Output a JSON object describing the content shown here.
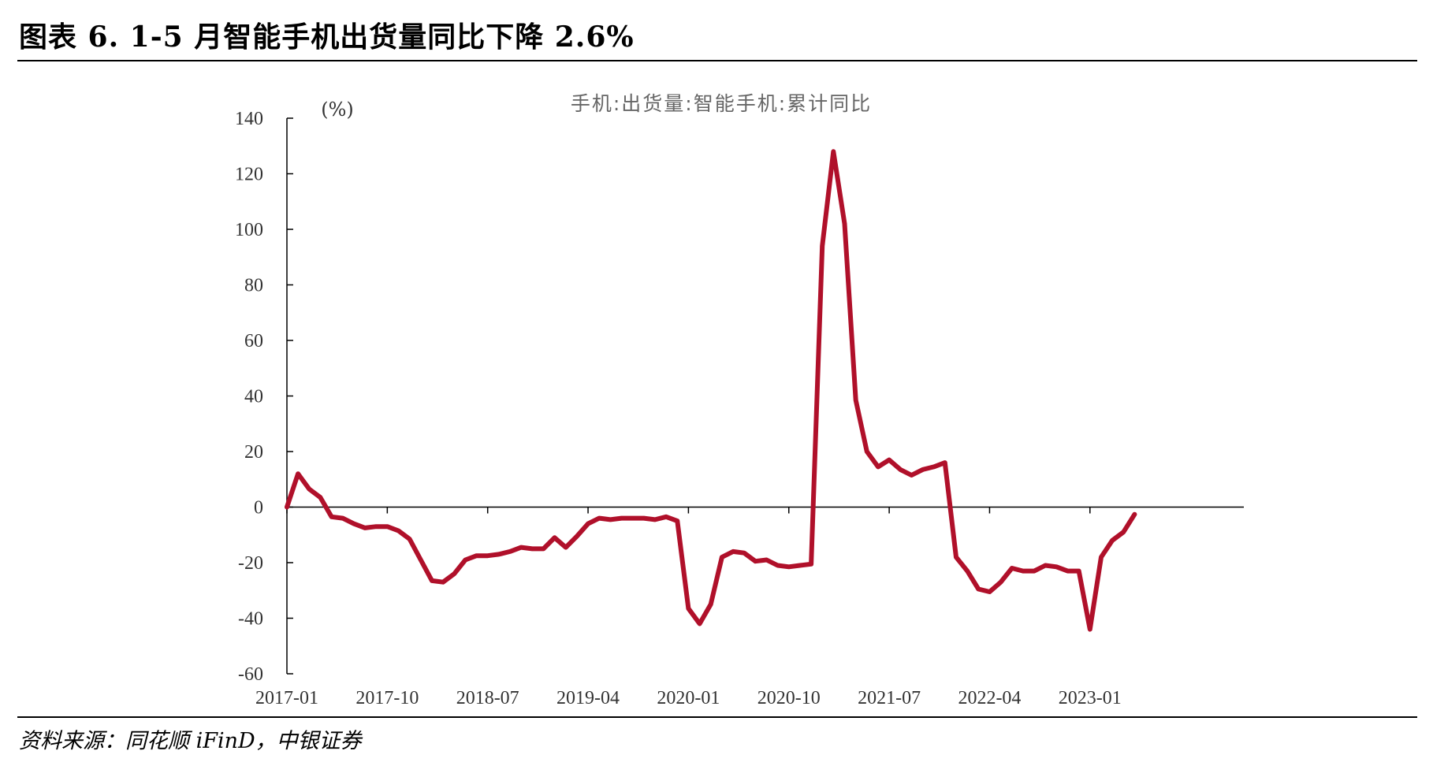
{
  "figure": {
    "title": "图表 6. 1-5 月智能手机出货量同比下降 2.6%",
    "source": "资料来源：同花顺 iFinD，中银证券"
  },
  "chart_data": {
    "type": "line",
    "title": "手机:出货量:智能手机:累计同比",
    "ylabel": "(%)",
    "xlabel": "",
    "ylim": [
      -60,
      140
    ],
    "yticks": [
      -60,
      -40,
      -20,
      0,
      20,
      40,
      60,
      80,
      100,
      120,
      140
    ],
    "xticks": [
      "2017-01",
      "2017-10",
      "2018-07",
      "2019-04",
      "2020-01",
      "2020-10",
      "2021-07",
      "2022-04",
      "2023-01"
    ],
    "grid": false,
    "legend": "none",
    "series": [
      {
        "name": "",
        "color": "#B0102A",
        "x": [
          "2017-01",
          "2017-02",
          "2017-03",
          "2017-04",
          "2017-05",
          "2017-06",
          "2017-07",
          "2017-08",
          "2017-09",
          "2017-10",
          "2017-11",
          "2017-12",
          "2018-01",
          "2018-02",
          "2018-03",
          "2018-04",
          "2018-05",
          "2018-06",
          "2018-07",
          "2018-08",
          "2018-09",
          "2018-10",
          "2018-11",
          "2018-12",
          "2019-01",
          "2019-02",
          "2019-03",
          "2019-04",
          "2019-05",
          "2019-06",
          "2019-07",
          "2019-08",
          "2019-09",
          "2019-10",
          "2019-11",
          "2019-12",
          "2020-01",
          "2020-02",
          "2020-03",
          "2020-04",
          "2020-05",
          "2020-06",
          "2020-07",
          "2020-08",
          "2020-09",
          "2020-10",
          "2020-11",
          "2020-12",
          "2021-01",
          "2021-02",
          "2021-03",
          "2021-04",
          "2021-05",
          "2021-06",
          "2021-07",
          "2021-08",
          "2021-09",
          "2021-10",
          "2021-11",
          "2021-12",
          "2022-01",
          "2022-02",
          "2022-03",
          "2022-04",
          "2022-05",
          "2022-06",
          "2022-07",
          "2022-08",
          "2022-09",
          "2022-10",
          "2022-11",
          "2022-12",
          "2023-01",
          "2023-02",
          "2023-03",
          "2023-04",
          "2023-05"
        ],
        "values": [
          0,
          12,
          6.5,
          3.5,
          -3.5,
          -4,
          -6,
          -7.5,
          -7,
          -7,
          -8.5,
          -11.5,
          -19,
          -26.5,
          -27,
          -24,
          -19,
          -17.5,
          -17.5,
          -17,
          -16,
          -14.5,
          -15,
          -15,
          -11,
          -14.5,
          -10.5,
          -6,
          -4,
          -4.5,
          -4,
          -4,
          -4,
          -4.5,
          -3.5,
          -5,
          -36.5,
          -42,
          -35,
          -18,
          -16,
          -16.5,
          -19.5,
          -19,
          -21,
          -21.5,
          -21,
          -20.5,
          94,
          128,
          102,
          38.5,
          20,
          14.5,
          17,
          13.5,
          11.5,
          13.5,
          14.5,
          16,
          -18,
          -23,
          -29.5,
          -30.5,
          -27,
          -22,
          -23,
          -23,
          -21,
          -21.5,
          -23,
          -23,
          -44,
          -18,
          -12,
          -9,
          -2.6
        ]
      }
    ]
  }
}
